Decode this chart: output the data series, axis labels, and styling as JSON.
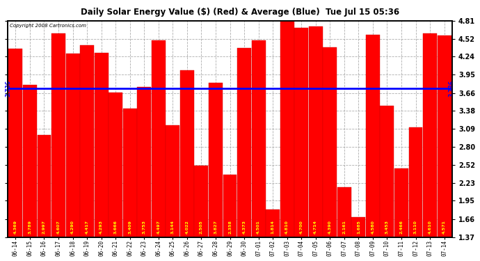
{
  "title": "Daily Solar Energy Value ($) (Red) & Average (Blue)  Tue Jul 15 05:36",
  "copyright": "Copyright 2008 Cartronics.com",
  "categories": [
    "06-14",
    "06-15",
    "06-16",
    "06-17",
    "06-18",
    "06-19",
    "06-20",
    "06-21",
    "06-22",
    "06-23",
    "06-24",
    "06-25",
    "06-26",
    "06-27",
    "06-28",
    "06-29",
    "06-30",
    "07-01",
    "07-02",
    "07-03",
    "07-04",
    "07-05",
    "07-06",
    "07-07",
    "07-08",
    "07-09",
    "07-10",
    "07-11",
    "07-12",
    "07-13",
    "07-14"
  ],
  "values": [
    4.369,
    3.789,
    2.997,
    4.607,
    4.29,
    4.417,
    4.293,
    3.666,
    3.409,
    3.753,
    4.497,
    3.144,
    4.022,
    2.505,
    3.827,
    2.358,
    4.373,
    4.501,
    1.814,
    4.81,
    4.7,
    4.714,
    4.39,
    2.161,
    1.685,
    4.58,
    3.453,
    2.466,
    3.11,
    4.61,
    4.571
  ],
  "average": 3.736,
  "bar_color": "#FF0000",
  "avg_line_color": "#0000FF",
  "background_color": "#FFFFFF",
  "plot_bg_color": "#FFFFFF",
  "grid_color": "#999999",
  "title_color": "#000000",
  "copyright_color": "#000000",
  "bar_label_color": "#FFFF00",
  "ylim_min": 1.37,
  "ylim_max": 4.81,
  "yticks": [
    1.37,
    1.66,
    1.95,
    2.23,
    2.52,
    2.8,
    3.09,
    3.38,
    3.66,
    3.95,
    4.24,
    4.52,
    4.81
  ],
  "avg_label": "3.736"
}
